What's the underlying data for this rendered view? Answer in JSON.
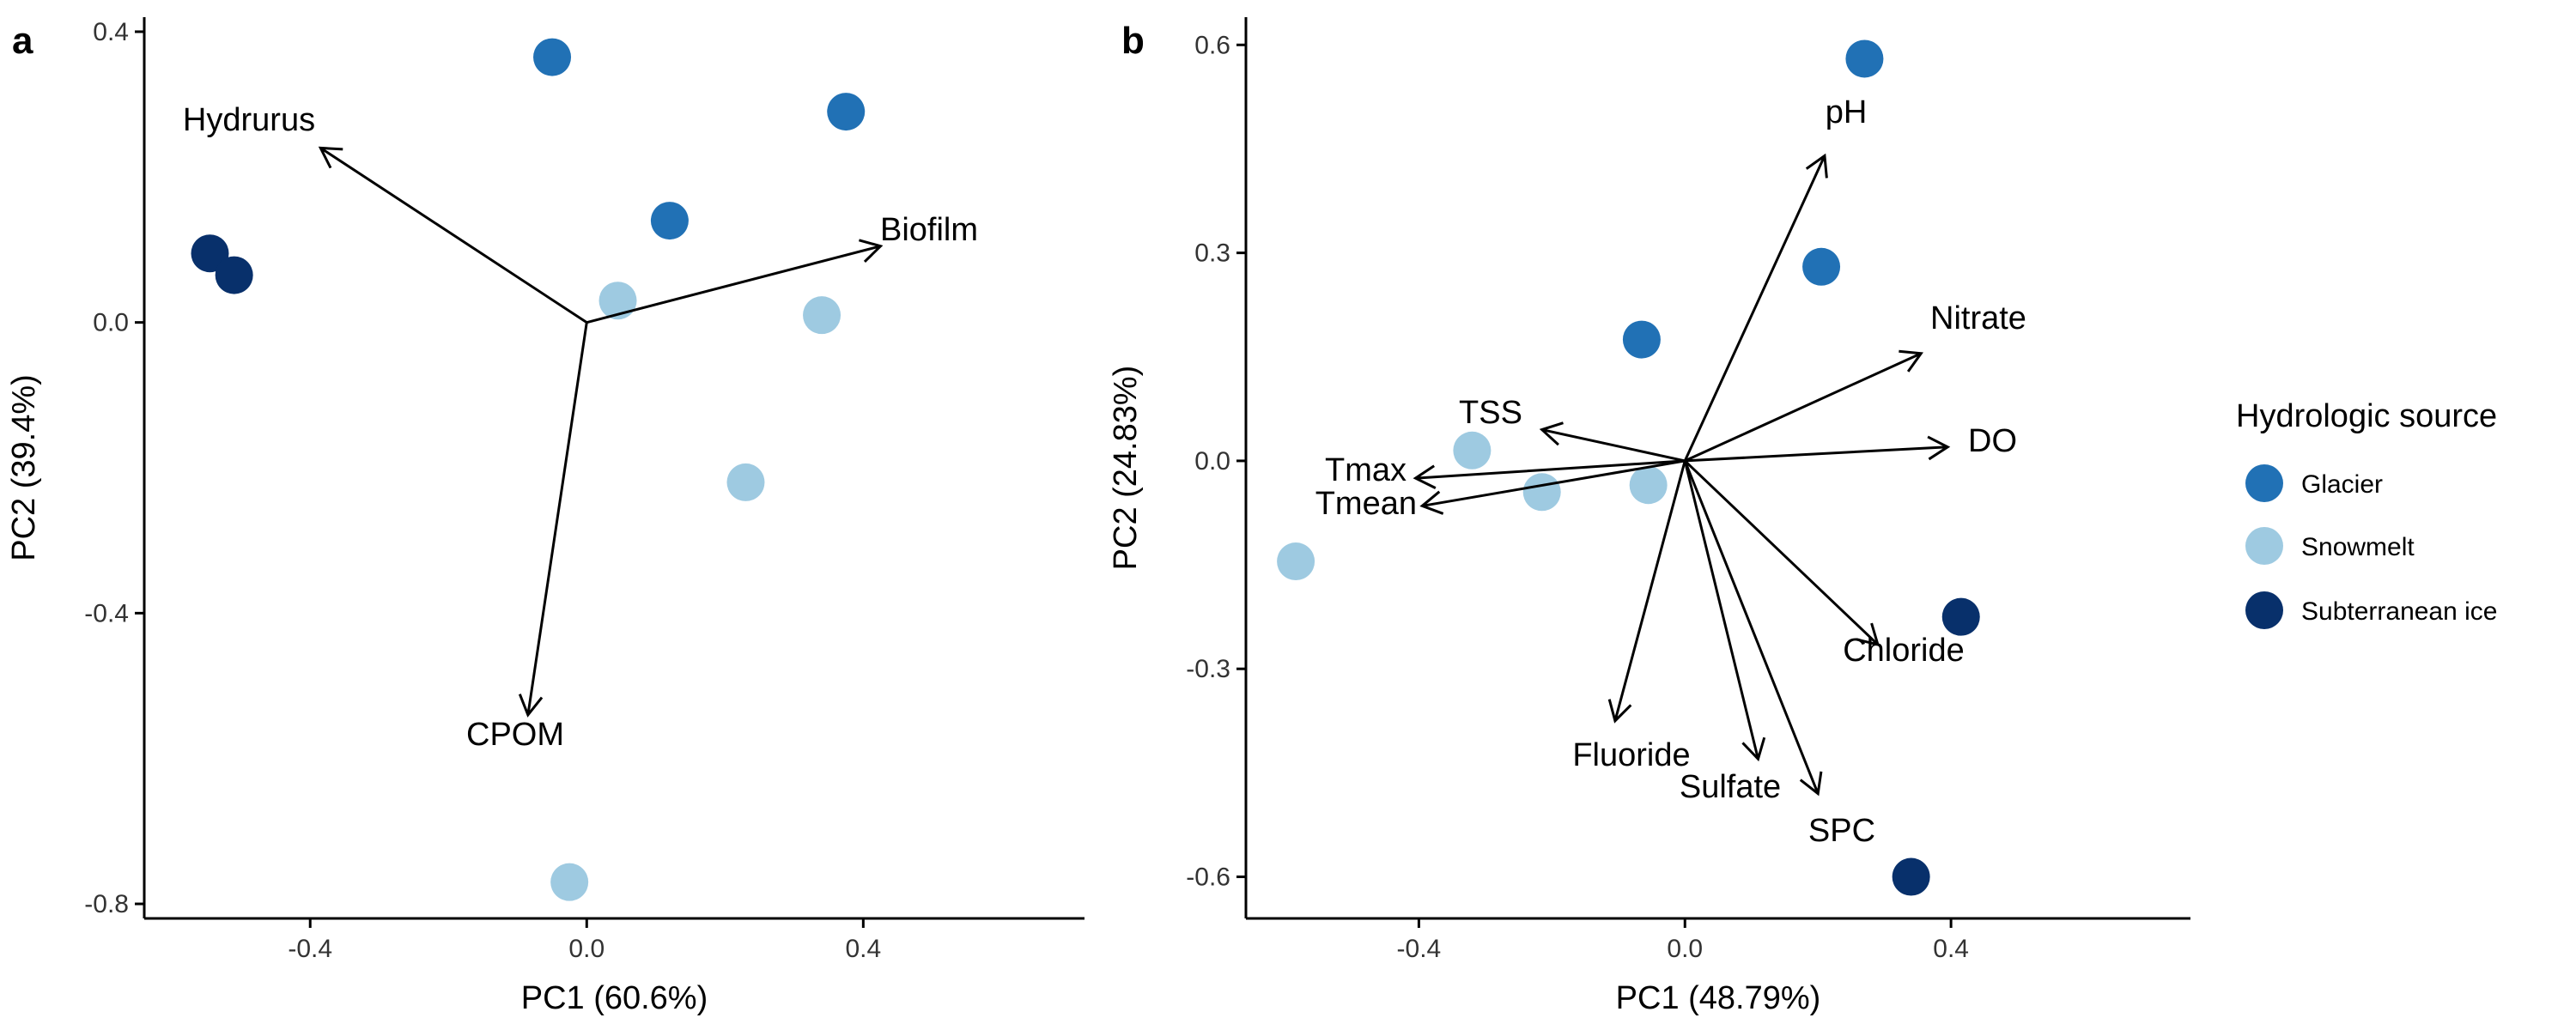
{
  "colors": {
    "Glacier": "#2171b5",
    "Snowmelt": "#9ecae1",
    "Subterranean ice": "#08306b"
  },
  "legend": {
    "title": "Hydrologic source",
    "items": [
      "Glacier",
      "Snowmelt",
      "Subterranean ice"
    ]
  },
  "chart_data": [
    {
      "type": "scatter",
      "panel_label": "a",
      "xlabel": "PC1 (60.6%)",
      "ylabel": "PC2 (39.4%)",
      "xlim": [
        -0.64,
        0.72
      ],
      "ylim": [
        -0.82,
        0.42
      ],
      "xticks": [
        -0.4,
        0.0,
        0.4
      ],
      "yticks": [
        -0.8,
        -0.4,
        0.0,
        0.4
      ],
      "xtick_labels": [
        "-0.4",
        "0.0",
        "0.4"
      ],
      "ytick_labels": [
        "-0.8",
        "-0.4",
        "0.0",
        "0.4"
      ],
      "grid": false,
      "points": [
        {
          "x": -0.05,
          "y": 0.365,
          "group": "Glacier"
        },
        {
          "x": 0.375,
          "y": 0.29,
          "group": "Glacier"
        },
        {
          "x": 0.12,
          "y": 0.14,
          "group": "Glacier"
        },
        {
          "x": 0.045,
          "y": 0.03,
          "group": "Snowmelt"
        },
        {
          "x": 0.34,
          "y": 0.01,
          "group": "Snowmelt"
        },
        {
          "x": 0.23,
          "y": -0.22,
          "group": "Snowmelt"
        },
        {
          "x": -0.025,
          "y": -0.77,
          "group": "Snowmelt"
        },
        {
          "x": -0.545,
          "y": 0.095,
          "group": "Subterranean ice"
        },
        {
          "x": -0.51,
          "y": 0.065,
          "group": "Subterranean ice"
        }
      ],
      "vectors": [
        {
          "name": "Hydrurus",
          "x": -0.385,
          "y": 0.24
        },
        {
          "name": "Biofilm",
          "x": 0.425,
          "y": 0.105
        },
        {
          "name": "CPOM",
          "x": -0.085,
          "y": -0.54
        }
      ]
    },
    {
      "type": "scatter",
      "panel_label": "b",
      "xlabel": "PC1 (48.79%)",
      "ylabel": "PC2 (24.83%)",
      "xlim": [
        -0.66,
        0.76
      ],
      "ylim": [
        -0.66,
        0.64
      ],
      "xticks": [
        -0.4,
        0.0,
        0.4
      ],
      "yticks": [
        -0.6,
        -0.3,
        0.0,
        0.3,
        0.6
      ],
      "xtick_labels": [
        "-0.4",
        "0.0",
        "0.4"
      ],
      "ytick_labels": [
        "-0.6",
        "-0.3",
        "0.0",
        "0.3",
        "0.6"
      ],
      "grid": false,
      "points": [
        {
          "x": 0.27,
          "y": 0.58,
          "group": "Glacier"
        },
        {
          "x": 0.205,
          "y": 0.28,
          "group": "Glacier"
        },
        {
          "x": -0.065,
          "y": 0.175,
          "group": "Glacier"
        },
        {
          "x": -0.32,
          "y": 0.015,
          "group": "Snowmelt"
        },
        {
          "x": -0.215,
          "y": -0.045,
          "group": "Snowmelt"
        },
        {
          "x": -0.055,
          "y": -0.035,
          "group": "Snowmelt"
        },
        {
          "x": -0.585,
          "y": -0.145,
          "group": "Snowmelt"
        },
        {
          "x": 0.415,
          "y": -0.225,
          "group": "Subterranean ice"
        },
        {
          "x": 0.34,
          "y": -0.6,
          "group": "Subterranean ice"
        }
      ],
      "vectors": [
        {
          "name": "pH",
          "x": 0.21,
          "y": 0.44
        },
        {
          "name": "Nitrate",
          "x": 0.355,
          "y": 0.155
        },
        {
          "name": "DO",
          "x": 0.395,
          "y": 0.02
        },
        {
          "name": "TSS",
          "x": -0.215,
          "y": 0.045
        },
        {
          "name": "Tmax",
          "x": -0.405,
          "y": -0.025
        },
        {
          "name": "Tmean",
          "x": -0.395,
          "y": -0.065
        },
        {
          "name": "Chloride",
          "x": 0.29,
          "y": -0.265
        },
        {
          "name": "Fluoride",
          "x": -0.105,
          "y": -0.375
        },
        {
          "name": "Sulfate",
          "x": 0.11,
          "y": -0.43
        },
        {
          "name": "SPC",
          "x": 0.2,
          "y": -0.48
        }
      ]
    }
  ]
}
